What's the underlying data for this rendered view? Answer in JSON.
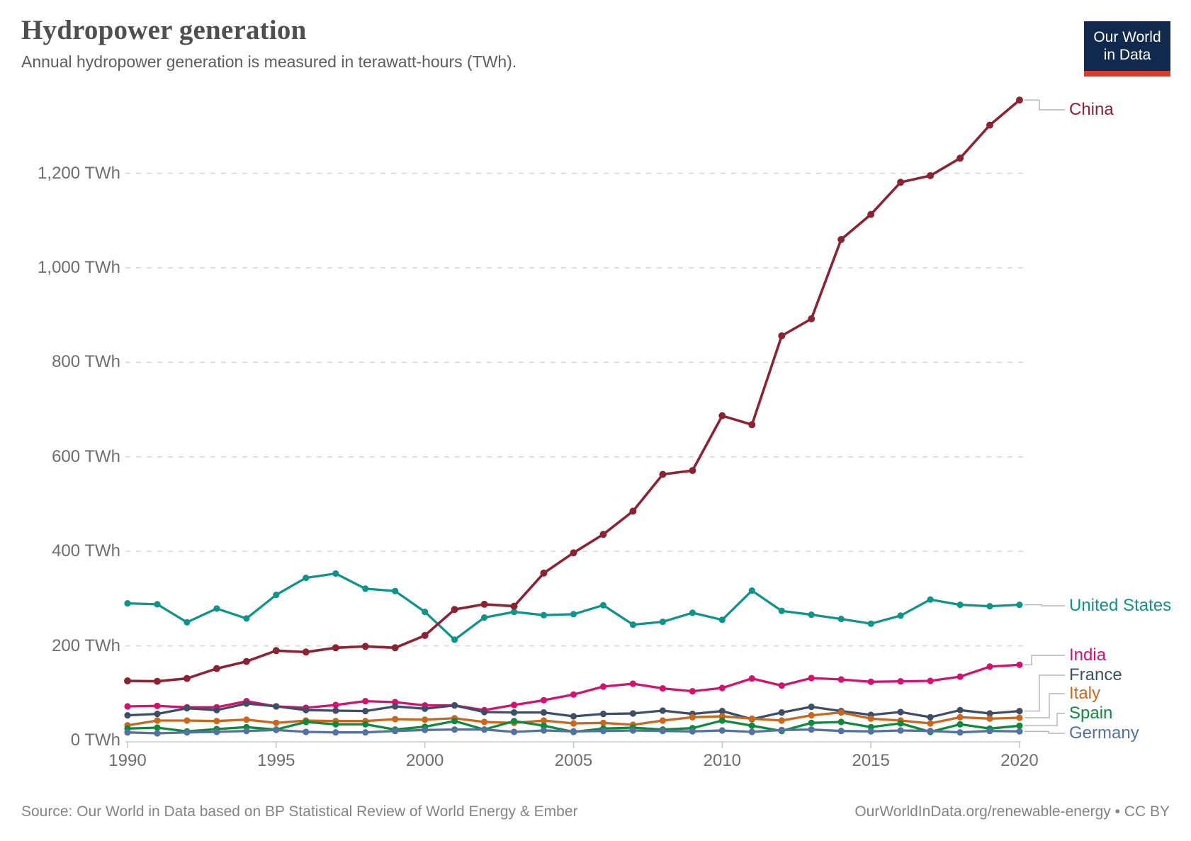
{
  "header": {
    "title": "Hydropower generation",
    "subtitle": "Annual hydropower generation is measured in terawatt-hours (TWh).",
    "logo": {
      "line1": "Our World",
      "line2": "in Data",
      "bg_color": "#12294e",
      "accent_color": "#dc3a2b"
    }
  },
  "footer": {
    "source": "Source: Our World in Data based on BP Statistical Review of World Energy & Ember",
    "license": "OurWorldInData.org/renewable-energy • CC BY"
  },
  "chart_data": {
    "type": "line",
    "title": "Hydropower generation",
    "unit": "TWh",
    "x": [
      1990,
      1991,
      1992,
      1993,
      1994,
      1995,
      1996,
      1997,
      1998,
      1999,
      2000,
      2001,
      2002,
      2003,
      2004,
      2005,
      2006,
      2007,
      2008,
      2009,
      2010,
      2011,
      2012,
      2013,
      2014,
      2015,
      2016,
      2017,
      2018,
      2019,
      2020
    ],
    "x_ticks": [
      "1990",
      "1995",
      "2000",
      "2005",
      "2010",
      "2015",
      "2020"
    ],
    "y_ticks": [
      {
        "value": 0,
        "label": "0 TWh"
      },
      {
        "value": 200,
        "label": "200 TWh"
      },
      {
        "value": 400,
        "label": "400 TWh"
      },
      {
        "value": 600,
        "label": "600 TWh"
      },
      {
        "value": 800,
        "label": "800 TWh"
      },
      {
        "value": 1000,
        "label": "1,000 TWh"
      },
      {
        "value": 1200,
        "label": "1,200 TWh"
      }
    ],
    "ylim": [
      0,
      1380
    ],
    "grid": "horizontal-dashed",
    "legend_position": "right-of-line-ends",
    "colors": {
      "gridline": "#d9d9d9",
      "axis": "#c9c9c9",
      "connector": "#b3b3b3",
      "tick_text": "#6e6e6e"
    },
    "series": [
      {
        "name": "China",
        "color": "#8b2332",
        "values": [
          126,
          125,
          131,
          152,
          167,
          190,
          187,
          196,
          199,
          196,
          222,
          277,
          288,
          284,
          354,
          397,
          436,
          485,
          563,
          571,
          687,
          668,
          856,
          892,
          1060,
          1113,
          1181,
          1195,
          1232,
          1302,
          1355
        ]
      },
      {
        "name": "United States",
        "color": "#0f9489",
        "values": [
          290,
          288,
          250,
          279,
          258,
          308,
          344,
          353,
          321,
          316,
          272,
          213,
          260,
          272,
          265,
          267,
          286,
          245,
          251,
          270,
          255,
          317,
          274,
          266,
          257,
          247,
          264,
          298,
          287,
          284,
          287
        ]
      },
      {
        "name": "India",
        "color": "#d6106e",
        "values": [
          72,
          73,
          70,
          70,
          83,
          72,
          69,
          75,
          83,
          81,
          74,
          74,
          64,
          75,
          85,
          97,
          114,
          120,
          110,
          104,
          111,
          131,
          116,
          132,
          129,
          124,
          125,
          126,
          135,
          156,
          160
        ]
      },
      {
        "name": "France",
        "color": "#3d4e66",
        "values": [
          53,
          56,
          68,
          64,
          78,
          72,
          64,
          63,
          62,
          72,
          67,
          74,
          60,
          59,
          59,
          51,
          56,
          57,
          63,
          56,
          62,
          45,
          59,
          71,
          62,
          54,
          60,
          49,
          64,
          57,
          62
        ]
      },
      {
        "name": "Italy",
        "color": "#ca671d",
        "values": [
          32,
          42,
          42,
          41,
          44,
          37,
          42,
          41,
          41,
          45,
          44,
          47,
          39,
          37,
          42,
          36,
          37,
          33,
          42,
          49,
          51,
          46,
          42,
          53,
          59,
          46,
          42,
          36,
          49,
          46,
          48
        ]
      },
      {
        "name": "Spain",
        "color": "#0e8a3e",
        "values": [
          25,
          27,
          19,
          24,
          28,
          23,
          39,
          34,
          34,
          23,
          29,
          41,
          23,
          41,
          31,
          18,
          25,
          27,
          23,
          26,
          42,
          31,
          20,
          37,
          39,
          28,
          36,
          18,
          34,
          25,
          31
        ]
      },
      {
        "name": "Germany",
        "color": "#5471a0",
        "values": [
          17,
          15,
          17,
          18,
          20,
          22,
          18,
          17,
          17,
          20,
          22,
          23,
          23,
          18,
          21,
          19,
          20,
          21,
          20,
          19,
          21,
          18,
          22,
          23,
          20,
          19,
          21,
          20,
          17,
          20,
          19
        ]
      }
    ]
  }
}
